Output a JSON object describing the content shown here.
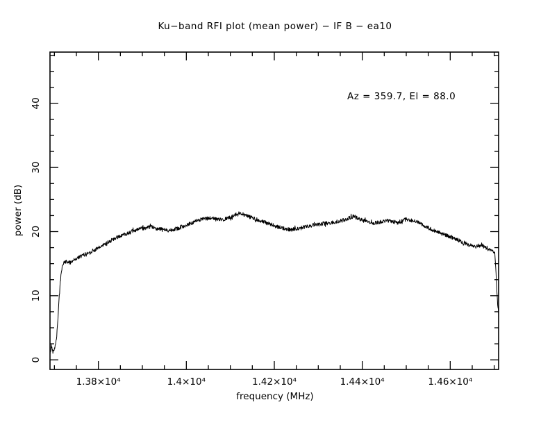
{
  "chart_data": {
    "type": "line",
    "title": "Ku−band RFI plot (mean power) − IF B − ea10",
    "annotation": "Az = 359.7, El = 88.0",
    "xlabel": "frequency (MHz)",
    "ylabel": "power (dB)",
    "xlim": [
      13690,
      14710
    ],
    "ylim": [
      -1.5,
      48
    ],
    "grid": false,
    "legend": "none",
    "line_color": "#000000",
    "background": "#ffffff",
    "noise_amplitude": 0.3,
    "x_ticks": {
      "values": [
        13800,
        14000,
        14200,
        14400,
        14600
      ],
      "labels": [
        "1.38×10⁴",
        "1.4×10⁴",
        "1.42×10⁴",
        "1.44×10⁴",
        "1.46×10⁴"
      ],
      "minor_step": 50
    },
    "y_ticks": {
      "values": [
        0,
        10,
        20,
        30,
        40
      ],
      "labels": [
        "0",
        "10",
        "20",
        "30",
        "40"
      ],
      "minor_step": 2.5
    },
    "series": [
      {
        "name": "mean power",
        "x": [
          13690,
          13693,
          13697,
          13701,
          13705,
          13709,
          13713,
          13718,
          13725,
          13735,
          13750,
          13765,
          13780,
          13800,
          13820,
          13840,
          13860,
          13880,
          13900,
          13920,
          13940,
          13960,
          13980,
          14000,
          14020,
          14040,
          14060,
          14080,
          14100,
          14120,
          14140,
          14160,
          14180,
          14200,
          14220,
          14240,
          14260,
          14280,
          14300,
          14320,
          14340,
          14360,
          14380,
          14400,
          14420,
          14440,
          14460,
          14480,
          14500,
          14520,
          14540,
          14560,
          14580,
          14600,
          14620,
          14640,
          14655,
          14670,
          14685,
          14695,
          14701,
          14704,
          14707,
          14710
        ],
        "y": [
          0.8,
          2.2,
          1.2,
          2.0,
          3.5,
          7.5,
          12.0,
          14.8,
          15.3,
          15.2,
          15.8,
          16.3,
          16.8,
          17.4,
          18.3,
          19.0,
          19.6,
          20.1,
          20.5,
          20.7,
          20.4,
          20.2,
          20.5,
          21.0,
          21.6,
          22.0,
          22.1,
          21.8,
          22.2,
          22.9,
          22.4,
          21.9,
          21.4,
          20.9,
          20.5,
          20.3,
          20.6,
          20.9,
          21.1,
          21.3,
          21.5,
          21.8,
          22.4,
          21.8,
          21.3,
          21.5,
          21.7,
          21.4,
          21.9,
          21.7,
          21.0,
          20.2,
          19.7,
          19.2,
          18.6,
          18.0,
          17.6,
          17.9,
          17.3,
          17.0,
          16.8,
          13.5,
          9.5,
          7.0
        ]
      }
    ]
  }
}
